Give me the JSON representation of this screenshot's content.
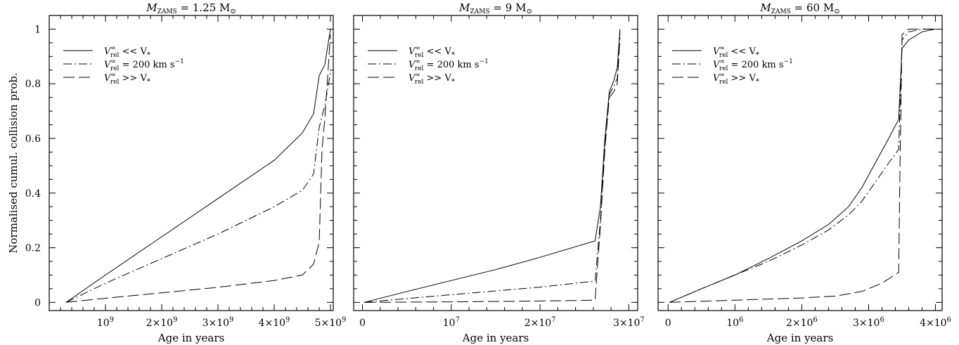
{
  "chart_data": [
    {
      "type": "line",
      "title": {
        "var": "M",
        "sub": "ZAMS",
        "rest": " = 1.25 M",
        "sym": "⊙"
      },
      "xlabel": "Age in years",
      "ylabel": "Normalised cumul. collision prob.",
      "xlim": [
        0,
        5050000000
      ],
      "ylim": [
        -0.03,
        1.05
      ],
      "xticks": [
        {
          "value": 1000000000,
          "label": "10",
          "exp": "9"
        },
        {
          "value": 2000000000,
          "label": "2×10",
          "exp": "9"
        },
        {
          "value": 3000000000,
          "label": "3×10",
          "exp": "9"
        },
        {
          "value": 4000000000,
          "label": "4×10",
          "exp": "9"
        },
        {
          "value": 5000000000,
          "label": "5×10",
          "exp": "9"
        }
      ],
      "yticks": [
        {
          "value": 0,
          "label": "0"
        },
        {
          "value": 0.2,
          "label": "0.2"
        },
        {
          "value": 0.4,
          "label": "0.4"
        },
        {
          "value": 0.6,
          "label": "0.6"
        },
        {
          "value": 0.8,
          "label": "0.8"
        },
        {
          "value": 1,
          "label": "1"
        }
      ],
      "legend_position": "top-left",
      "series": [
        {
          "name": {
            "v": "V",
            "sup": "∞",
            "sub": "rel",
            "rest": " << V",
            "sub2": "*"
          },
          "dash": "solid",
          "x": [
            300000000,
            1000000000,
            2000000000,
            3000000000,
            4000000000,
            4500000000,
            4700000000,
            4800000000,
            4900000000,
            5000000000
          ],
          "y": [
            0,
            0.1,
            0.24,
            0.38,
            0.52,
            0.62,
            0.69,
            0.83,
            0.87,
            1.0
          ]
        },
        {
          "name": {
            "v": "V",
            "sup": "∞",
            "sub": "rel",
            "rest": " = 200 km s",
            "sup2": "−1"
          },
          "dash": "dashdot",
          "x": [
            300000000,
            1000000000,
            2000000000,
            3000000000,
            4000000000,
            4500000000,
            4700000000,
            4800000000,
            4900000000,
            5000000000
          ],
          "y": [
            0,
            0.07,
            0.16,
            0.25,
            0.35,
            0.41,
            0.47,
            0.64,
            0.72,
            0.84
          ]
        },
        {
          "name": {
            "v": "V",
            "sup": "∞",
            "sub": "rel",
            "rest": " >> V",
            "sub2": "*"
          },
          "dash": "longdash",
          "x": [
            300000000,
            1000000000,
            2000000000,
            3000000000,
            4000000000,
            4500000000,
            4700000000,
            4800000000,
            4850000000,
            4900000000,
            5000000000
          ],
          "y": [
            0,
            0.015,
            0.035,
            0.055,
            0.08,
            0.1,
            0.14,
            0.22,
            0.56,
            0.67,
            0.98
          ]
        }
      ]
    },
    {
      "type": "line",
      "title": {
        "var": "M",
        "sub": "ZAMS",
        "rest": " = 9 M",
        "sym": "⊙"
      },
      "xlabel": "Age in years",
      "ylabel": "",
      "xlim": [
        -1000000,
        31000000
      ],
      "ylim": [
        -0.03,
        1.05
      ],
      "xticks": [
        {
          "value": 0,
          "label": "0"
        },
        {
          "value": 10000000,
          "label": "10",
          "exp": "7"
        },
        {
          "value": 20000000,
          "label": "2×10",
          "exp": "7"
        },
        {
          "value": 30000000,
          "label": "3×10",
          "exp": "7"
        }
      ],
      "yticks": [
        {
          "value": 0,
          "label": ""
        },
        {
          "value": 0.2,
          "label": ""
        },
        {
          "value": 0.4,
          "label": ""
        },
        {
          "value": 0.6,
          "label": ""
        },
        {
          "value": 0.8,
          "label": ""
        },
        {
          "value": 1,
          "label": ""
        }
      ],
      "legend_position": "top-left",
      "series": [
        {
          "name": {
            "v": "V",
            "sup": "∞",
            "sub": "rel",
            "rest": " << V",
            "sub2": "*"
          },
          "dash": "solid",
          "x": [
            200000,
            5000000,
            10000000,
            15000000,
            20000000,
            26200000,
            26800000,
            27300000,
            27800000,
            28300000,
            28700000,
            29000000
          ],
          "y": [
            0,
            0.04,
            0.08,
            0.12,
            0.165,
            0.225,
            0.35,
            0.6,
            0.77,
            0.81,
            0.86,
            1.0
          ]
        },
        {
          "name": {
            "v": "V",
            "sup": "∞",
            "sub": "rel",
            "rest": " = 200 km s",
            "sup2": "−1"
          },
          "dash": "dashdot",
          "x": [
            200000,
            5000000,
            10000000,
            15000000,
            20000000,
            26200000,
            26800000,
            27300000,
            27800000,
            28300000,
            28700000,
            29000000
          ],
          "y": [
            0,
            0.014,
            0.028,
            0.042,
            0.056,
            0.078,
            0.3,
            0.57,
            0.76,
            0.79,
            0.82,
            0.99
          ]
        },
        {
          "name": {
            "v": "V",
            "sup": "∞",
            "sub": "rel",
            "rest": " >> V",
            "sub2": "*"
          },
          "dash": "longdash",
          "x": [
            200000,
            10000000,
            20000000,
            26200000,
            26800000,
            27300000,
            27800000,
            28300000,
            28700000,
            29000000
          ],
          "y": [
            0,
            0.002,
            0.005,
            0.008,
            0.28,
            0.56,
            0.75,
            0.77,
            0.8,
            0.97
          ]
        }
      ]
    },
    {
      "type": "line",
      "title": {
        "var": "M",
        "sub": "ZAMS",
        "rest": " = 60 M",
        "sym": "⊙"
      },
      "xlabel": "Age in years",
      "ylabel": "",
      "xlim": [
        -150000,
        4100000
      ],
      "ylim": [
        -0.03,
        1.05
      ],
      "xticks": [
        {
          "value": 0,
          "label": "0"
        },
        {
          "value": 1000000,
          "label": "10",
          "exp": "6"
        },
        {
          "value": 2000000,
          "label": "2×10",
          "exp": "6"
        },
        {
          "value": 3000000,
          "label": "3×10",
          "exp": "6"
        },
        {
          "value": 4000000,
          "label": "4×10",
          "exp": "6"
        }
      ],
      "yticks": [
        {
          "value": 0,
          "label": ""
        },
        {
          "value": 0.2,
          "label": ""
        },
        {
          "value": 0.4,
          "label": ""
        },
        {
          "value": 0.6,
          "label": ""
        },
        {
          "value": 0.8,
          "label": ""
        },
        {
          "value": 1,
          "label": ""
        }
      ],
      "legend_position": "top-left",
      "series": [
        {
          "name": {
            "v": "V",
            "sup": "∞",
            "sub": "rel",
            "rest": " << V",
            "sub2": "*"
          },
          "dash": "solid",
          "x": [
            20000,
            500000,
            1000000,
            1500000,
            2000000,
            2400000,
            2700000,
            2900000,
            3100000,
            3300000,
            3450000,
            3500000,
            3600000,
            3800000,
            4000000
          ],
          "y": [
            0,
            0.05,
            0.1,
            0.16,
            0.225,
            0.285,
            0.35,
            0.42,
            0.51,
            0.6,
            0.67,
            0.93,
            0.96,
            0.99,
            1.0
          ]
        },
        {
          "name": {
            "v": "V",
            "sup": "∞",
            "sub": "rel",
            "rest": " = 200 km s",
            "sup2": "−1"
          },
          "dash": "dashdot",
          "x": [
            20000,
            500000,
            1000000,
            1500000,
            2000000,
            2400000,
            2700000,
            2900000,
            3100000,
            3300000,
            3450000,
            3500000,
            3600000,
            3800000,
            4000000
          ],
          "y": [
            0,
            0.05,
            0.1,
            0.15,
            0.21,
            0.265,
            0.32,
            0.37,
            0.44,
            0.51,
            0.56,
            0.96,
            0.99,
            1.0,
            1.0
          ]
        },
        {
          "name": {
            "v": "V",
            "sup": "∞",
            "sub": "rel",
            "rest": " >> V",
            "sub2": "*"
          },
          "dash": "longdash",
          "x": [
            20000,
            1000000,
            2000000,
            2500000,
            2900000,
            3200000,
            3450000,
            3470000,
            3500000,
            3600000,
            3800000,
            4000000
          ],
          "y": [
            0,
            0.008,
            0.016,
            0.023,
            0.04,
            0.07,
            0.11,
            0.5,
            0.98,
            1.0,
            1.0,
            1.0
          ]
        }
      ]
    }
  ]
}
